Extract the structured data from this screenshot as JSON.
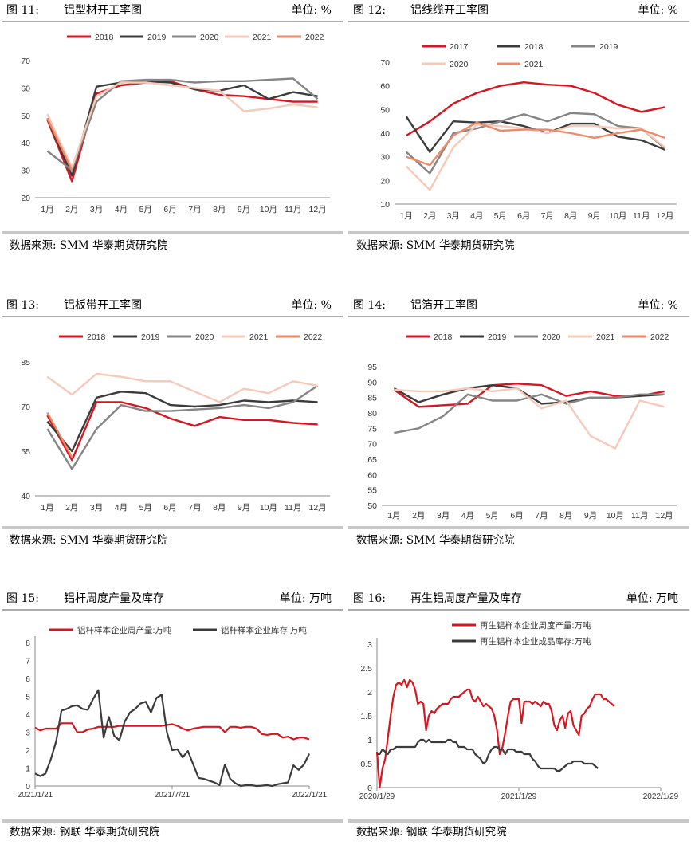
{
  "charts": [
    {
      "num": "图 11:",
      "title": "铝型材开工率图",
      "unit": "单位: %",
      "source": "数据来源: SMM  华泰期货研究院",
      "chart_data": {
        "type": "line",
        "categories": [
          "1月",
          "2月",
          "3月",
          "4月",
          "5月",
          "6月",
          "7月",
          "8月",
          "9月",
          "10月",
          "11月",
          "12月"
        ],
        "ylim": [
          20,
          70
        ],
        "yticks": [
          20,
          30,
          40,
          50,
          60,
          70
        ],
        "legend": "top",
        "series": [
          {
            "name": "2018",
            "color": "#d7161f",
            "values": [
              48.5,
              26,
              58,
              61,
              62,
              62.5,
              59.5,
              57.5,
              57,
              56,
              55,
              55
            ]
          },
          {
            "name": "2019",
            "color": "#3b3b3b",
            "values": [
              49,
              28,
              60.5,
              62,
              62.5,
              62,
              59.5,
              59,
              61,
              56,
              58.5,
              57
            ]
          },
          {
            "name": "2020",
            "color": "#858585",
            "values": [
              37,
              30,
              55,
              62.5,
              63,
              63,
              62,
              62.5,
              62.5,
              63,
              63.5,
              56
            ]
          },
          {
            "name": "2021",
            "color": "#f6c9b9",
            "values": [
              50.5,
              31,
              57,
              62,
              62,
              61,
              60,
              59,
              51.5,
              52.5,
              54,
              53
            ]
          },
          {
            "name": "2022",
            "color": "#ee8a67",
            "values": [
              49,
              30,
              null,
              null,
              null,
              null,
              null,
              null,
              null,
              null,
              null,
              null
            ]
          }
        ]
      }
    },
    {
      "num": "图 12:",
      "title": "铝线缆开工率图",
      "unit": "单位: %",
      "source": "数据来源: SMM  华泰期货研究院",
      "chart_data": {
        "type": "line",
        "categories": [
          "1月",
          "2月",
          "3月",
          "4月",
          "5月",
          "6月",
          "7月",
          "8月",
          "9月",
          "10月",
          "11月",
          "12月"
        ],
        "ylim": [
          10,
          70
        ],
        "yticks": [
          10,
          20,
          30,
          40,
          50,
          60,
          70
        ],
        "legend": "top",
        "series": [
          {
            "name": "2017",
            "color": "#d7161f",
            "values": [
              39,
              45,
              52.5,
              57,
              60,
              61.5,
              60.5,
              60,
              57,
              52,
              49,
              51
            ]
          },
          {
            "name": "2018",
            "color": "#3b3b3b",
            "values": [
              47,
              32,
              45,
              44.5,
              45,
              43,
              40,
              44,
              44,
              38.5,
              37,
              33
            ]
          },
          {
            "name": "2019",
            "color": "#858585",
            "values": [
              32,
              23,
              40,
              42,
              45,
              48,
              45,
              48.5,
              48,
              43,
              42,
              33.5
            ]
          },
          {
            "name": "2020",
            "color": "#f6c9b9",
            "values": [
              26,
              16,
              34,
              43.5,
              43,
              42,
              40,
              43,
              43,
              42,
              42,
              34
            ]
          },
          {
            "name": "2021",
            "color": "#ee8a67",
            "values": [
              30,
              26.5,
              39,
              44.5,
              41,
              41.5,
              41.5,
              40,
              38,
              40,
              41.5,
              38
            ]
          }
        ]
      }
    },
    {
      "num": "图 13:",
      "title": "铝板带开工率图",
      "unit": "单位: %",
      "source": "数据来源: SMM  华泰期货研究院",
      "chart_data": {
        "type": "line",
        "categories": [
          "1月",
          "2月",
          "3月",
          "4月",
          "5月",
          "6月",
          "7月",
          "8月",
          "9月",
          "10月",
          "11月",
          "12月"
        ],
        "ylim": [
          40,
          85
        ],
        "yticks": [
          40,
          55,
          70,
          85
        ],
        "legend": "top",
        "series": [
          {
            "name": "2018",
            "color": "#d7161f",
            "values": [
              67,
              52,
              71.5,
              71.5,
              69.5,
              66,
              63.5,
              66.5,
              65.5,
              65.5,
              64.5,
              64
            ]
          },
          {
            "name": "2019",
            "color": "#3b3b3b",
            "values": [
              65,
              55,
              73,
              75,
              74.5,
              70.5,
              70,
              70.5,
              72,
              71.5,
              72,
              71.5
            ]
          },
          {
            "name": "2020",
            "color": "#858585",
            "values": [
              62.5,
              49,
              62.5,
              70.5,
              68.5,
              68.5,
              69,
              69.5,
              70.5,
              69.5,
              71.5,
              77
            ]
          },
          {
            "name": "2021",
            "color": "#f6c9b9",
            "values": [
              80,
              74,
              81,
              80,
              78.5,
              78.5,
              75,
              71.5,
              76,
              74.5,
              78.5,
              77
            ]
          },
          {
            "name": "2022",
            "color": "#ee8a67",
            "values": [
              68,
              53,
              null,
              null,
              null,
              null,
              null,
              null,
              null,
              null,
              null,
              null
            ]
          }
        ]
      }
    },
    {
      "num": "图 14:",
      "title": "铝箔开工率图",
      "unit": "单位: %",
      "source": "数据来源: SMM  华泰期货研究院",
      "chart_data": {
        "type": "line",
        "categories": [
          "1月",
          "2月",
          "3月",
          "4月",
          "5月",
          "6月",
          "7月",
          "8月",
          "9月",
          "10月",
          "11月",
          "12月"
        ],
        "ylim": [
          50,
          95
        ],
        "yticks": [
          50,
          55,
          60,
          65,
          70,
          75,
          80,
          85,
          90,
          95
        ],
        "legend": "top",
        "series": [
          {
            "name": "2018",
            "color": "#d7161f",
            "values": [
              87.5,
              82,
              82.5,
              83,
              89,
              89.5,
              89,
              85.5,
              87,
              85.5,
              85.5,
              87
            ]
          },
          {
            "name": "2019",
            "color": "#3b3b3b",
            "values": [
              88,
              83.5,
              86,
              88,
              89,
              88,
              83,
              83.5,
              85,
              85,
              85.5,
              86
            ]
          },
          {
            "name": "2020",
            "color": "#858585",
            "values": [
              73.5,
              75,
              79,
              86,
              84,
              84,
              86,
              83,
              85,
              85,
              86,
              86
            ]
          },
          {
            "name": "2021",
            "color": "#f6c9b9",
            "values": [
              87.5,
              87,
              87,
              88,
              87,
              88,
              81.5,
              84,
              72.5,
              68.5,
              84,
              82
            ]
          },
          {
            "name": "2022",
            "color": "#ee8a67",
            "values": [
              87,
              null,
              null,
              null,
              null,
              null,
              null,
              null,
              null,
              null,
              null,
              null
            ]
          }
        ]
      }
    },
    {
      "num": "图 15:",
      "title": "铝杆周度产量及库存",
      "unit": "单位: 万吨",
      "source": "数据来源: 钢联  华泰期货研究院",
      "chart_data": {
        "type": "line",
        "xticks": [
          "2021/1/21",
          "2021/7/21",
          "2022/1/21"
        ],
        "xtick_pos": [
          0,
          26,
          52
        ],
        "ylim": [
          0,
          8
        ],
        "yticks": [
          0,
          1,
          2,
          3,
          4,
          5,
          6,
          7,
          8
        ],
        "legend": "top",
        "series": [
          {
            "name": "铝杆样本企业周产量:万吨",
            "color": "#d7161f",
            "values": [
              3.25,
              3.1,
              3.2,
              3.2,
              3.2,
              3.5,
              3.5,
              3.5,
              3.0,
              3.0,
              3.15,
              3.2,
              3.3,
              3.3,
              3.3,
              3.3,
              3.35,
              3.35,
              3.35,
              3.35,
              3.35,
              3.35,
              3.35,
              3.35,
              3.35,
              3.4,
              3.45,
              3.35,
              3.2,
              3.1,
              3.2,
              3.25,
              3.3,
              3.3,
              3.3,
              3.3,
              3.0,
              3.3,
              3.3,
              3.25,
              3.3,
              3.3,
              3.2,
              2.9,
              2.85,
              2.9,
              2.9,
              2.7,
              2.75,
              2.6,
              2.7,
              2.7,
              2.6
            ]
          },
          {
            "name": "铝杆样本企业库存:万吨",
            "color": "#3b3b3b",
            "values": [
              0.7,
              0.55,
              0.7,
              1.5,
              2.5,
              4.2,
              4.3,
              4.45,
              4.5,
              4.3,
              4.25,
              4.85,
              5.35,
              2.7,
              3.85,
              2.8,
              2.55,
              3.6,
              4.1,
              4.3,
              4.6,
              4.7,
              4.1,
              4.9,
              5.1,
              3.0,
              2.0,
              2.05,
              1.6,
              1.95,
              1.2,
              0.45,
              0.4,
              0.3,
              0.2,
              0.05,
              1.2,
              0.4,
              0.15,
              0.0,
              0.05,
              0.05,
              0.0,
              0.02,
              0.05,
              0.0,
              0.1,
              0.15,
              0.2,
              1.15,
              0.9,
              1.2,
              1.8
            ]
          }
        ]
      }
    },
    {
      "num": "图 16:",
      "title": "再生铝周度产量及库存",
      "unit": "单位:  万吨",
      "source": "数据来源: 钢联  华泰期货研究院",
      "chart_data": {
        "type": "line",
        "xticks": [
          "2020/1/29",
          "2021/1/29",
          "2022/1/29"
        ],
        "xtick_pos": [
          0,
          52,
          104
        ],
        "ylim": [
          0,
          3
        ],
        "yticks": [
          0,
          0.5,
          1,
          1.5,
          2,
          2.5,
          3
        ],
        "legend": "top",
        "series": [
          {
            "name": "再生铝样本企业周度产量:万吨",
            "color": "#d7161f",
            "values": [
              0.75,
              0.0,
              0.4,
              0.6,
              1.05,
              1.5,
              1.9,
              2.15,
              2.2,
              2.15,
              2.25,
              2.1,
              2.25,
              2.2,
              2.05,
              1.75,
              1.8,
              1.75,
              1.2,
              1.5,
              1.6,
              1.55,
              1.65,
              1.7,
              1.75,
              1.75,
              1.75,
              1.85,
              1.9,
              1.9,
              1.9,
              1.95,
              2.0,
              2.05,
              2.05,
              1.85,
              1.8,
              1.9,
              1.8,
              1.7,
              1.75,
              1.7,
              1.65,
              1.5,
              1.2,
              0.7,
              0.85,
              1.15,
              1.5,
              1.8,
              1.85,
              1.85,
              1.85,
              1.35,
              1.8,
              1.8,
              1.8,
              1.75,
              1.8,
              1.75,
              1.7,
              1.8,
              1.75,
              1.75,
              1.6,
              1.3,
              1.2,
              1.4,
              1.5,
              1.25,
              1.55,
              1.6,
              1.3,
              1.2,
              1.1,
              1.5,
              1.55,
              1.65,
              1.7,
              1.85,
              1.95,
              1.95,
              1.95,
              1.85,
              1.85,
              1.8,
              1.75,
              1.7
            ]
          },
          {
            "name": "再生铝样本企业成品库存:万吨",
            "color": "#3b3b3b",
            "values": [
              0.7,
              0.7,
              0.8,
              0.75,
              0.7,
              0.8,
              0.8,
              0.85,
              0.85,
              0.85,
              0.85,
              0.85,
              0.85,
              0.85,
              0.85,
              0.95,
              1.0,
              1.0,
              0.95,
              1.0,
              0.95,
              0.95,
              0.95,
              0.95,
              0.95,
              0.95,
              1.0,
              1.0,
              0.95,
              0.95,
              0.85,
              0.85,
              0.85,
              0.8,
              0.8,
              0.8,
              0.7,
              0.65,
              0.6,
              0.5,
              0.55,
              0.7,
              0.8,
              0.85,
              0.85,
              0.8,
              0.8,
              0.7,
              0.8,
              0.8,
              0.8,
              0.75,
              0.75,
              0.75,
              0.7,
              0.7,
              0.7,
              0.6,
              0.55,
              0.45,
              0.4,
              0.4,
              0.4,
              0.4,
              0.4,
              0.4,
              0.35,
              0.35,
              0.4,
              0.45,
              0.5,
              0.5,
              0.55,
              0.55,
              0.55,
              0.55,
              0.5,
              0.5,
              0.5,
              0.5,
              0.45,
              0.4
            ]
          }
        ]
      }
    }
  ]
}
